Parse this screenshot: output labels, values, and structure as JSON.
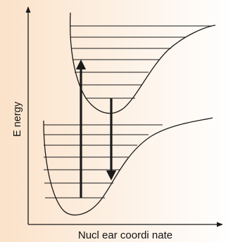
{
  "diagram": {
    "y_axis_label": "E nergy",
    "x_axis_label": "Nucl ear  coordi nate",
    "background_gradient": [
      "#fbe2c9",
      "#ffffff"
    ],
    "line_color": "#1a1a1a",
    "ground_state_levels": 7,
    "excited_state_levels": 7,
    "transitions": [
      {
        "kind": "absorption",
        "direction": "up"
      },
      {
        "kind": "emission",
        "direction": "down"
      }
    ]
  }
}
